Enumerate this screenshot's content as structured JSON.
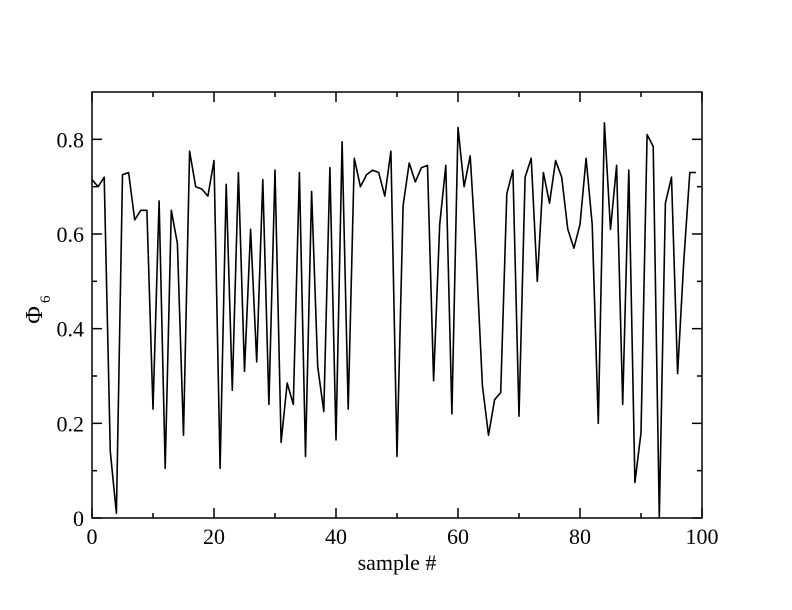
{
  "chart_data": {
    "type": "line",
    "title": "",
    "xlabel": "sample #",
    "ylabel_main": "Φ",
    "ylabel_sub": "6",
    "xlim": [
      0,
      100
    ],
    "ylim": [
      0,
      0.9
    ],
    "x_ticks": [
      0,
      20,
      40,
      60,
      80,
      100
    ],
    "x_tick_labels": [
      "0",
      "20",
      "40",
      "60",
      "80",
      "100"
    ],
    "x_minor_ticks": [
      10,
      30,
      50,
      70,
      90
    ],
    "y_ticks": [
      0,
      0.2,
      0.4,
      0.6,
      0.8
    ],
    "y_tick_labels": [
      "0",
      "0.2",
      "0.4",
      "0.6",
      "0.8"
    ],
    "y_minor_ticks": [
      0.1,
      0.3,
      0.5,
      0.7
    ],
    "grid": false,
    "series": [
      {
        "color": "#000000",
        "x": [
          0,
          1,
          2,
          3,
          4,
          5,
          6,
          7,
          8,
          9,
          10,
          11,
          12,
          13,
          14,
          15,
          16,
          17,
          18,
          19,
          20,
          21,
          22,
          23,
          24,
          25,
          26,
          27,
          28,
          29,
          30,
          31,
          32,
          33,
          34,
          35,
          36,
          37,
          38,
          39,
          40,
          41,
          42,
          43,
          44,
          45,
          46,
          47,
          48,
          49,
          50,
          51,
          52,
          53,
          54,
          55,
          56,
          57,
          58,
          59,
          60,
          61,
          62,
          63,
          64,
          65,
          66,
          67,
          68,
          69,
          70,
          71,
          72,
          73,
          74,
          75,
          76,
          77,
          78,
          79,
          80,
          81,
          82,
          83,
          84,
          85,
          86,
          87,
          88,
          89,
          90,
          91,
          92,
          93,
          94,
          95,
          96,
          97,
          98,
          99
        ],
        "y": [
          0.715,
          0.7,
          0.72,
          0.14,
          0.01,
          0.725,
          0.73,
          0.63,
          0.65,
          0.65,
          0.23,
          0.67,
          0.105,
          0.65,
          0.58,
          0.175,
          0.775,
          0.7,
          0.695,
          0.68,
          0.755,
          0.105,
          0.705,
          0.27,
          0.73,
          0.31,
          0.61,
          0.33,
          0.715,
          0.24,
          0.735,
          0.16,
          0.285,
          0.24,
          0.73,
          0.13,
          0.69,
          0.32,
          0.225,
          0.74,
          0.165,
          0.795,
          0.23,
          0.76,
          0.7,
          0.725,
          0.735,
          0.73,
          0.68,
          0.775,
          0.13,
          0.66,
          0.75,
          0.71,
          0.74,
          0.745,
          0.29,
          0.62,
          0.745,
          0.22,
          0.825,
          0.7,
          0.765,
          0.55,
          0.28,
          0.175,
          0.25,
          0.265,
          0.685,
          0.735,
          0.215,
          0.72,
          0.76,
          0.5,
          0.73,
          0.665,
          0.755,
          0.72,
          0.61,
          0.57,
          0.62,
          0.76,
          0.62,
          0.2,
          0.835,
          0.61,
          0.745,
          0.24,
          0.735,
          0.075,
          0.18,
          0.81,
          0.785,
          0.0,
          0.665,
          0.72,
          0.305,
          0.54,
          0.73,
          0.73
        ]
      }
    ]
  }
}
